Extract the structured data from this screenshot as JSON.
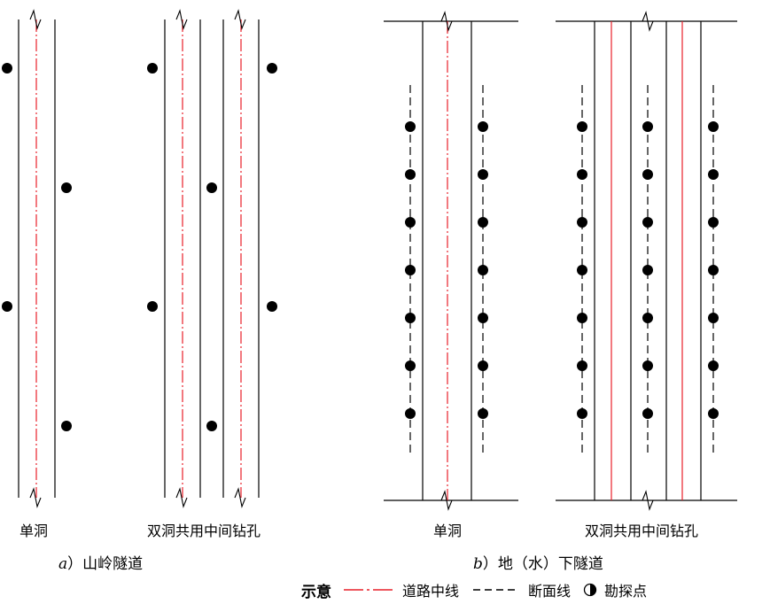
{
  "labels": {
    "a_single": "单洞",
    "a_double": "双洞共用中间钻孔",
    "b_single": "单洞",
    "b_double": "双洞共用中间钻孔"
  },
  "captions": {
    "a_letter": "a",
    "a_text": "）山岭隧道",
    "b_letter": "b",
    "b_text": "）地（水）下隧道"
  },
  "legend": {
    "title": "示意",
    "centerline": "道路中线",
    "section_line": "断面线",
    "survey_point": "勘探点"
  },
  "colors": {
    "centerline": "#e8202a",
    "line": "#000000",
    "point": "#000000"
  },
  "icons": {
    "survey_point": "half-filled-circle-icon",
    "break_mark": "break-line-icon"
  }
}
